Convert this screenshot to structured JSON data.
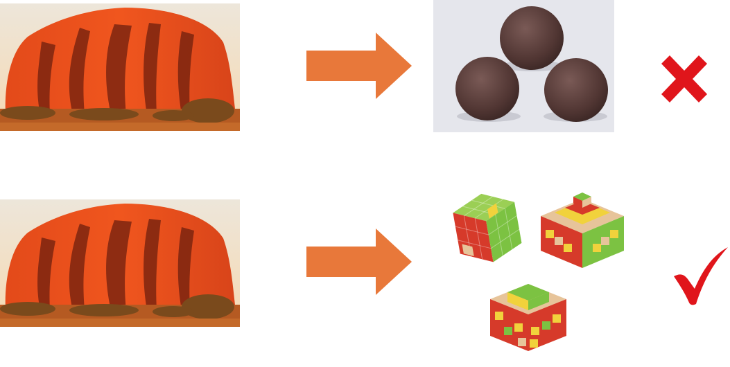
{
  "rows": [
    {
      "source": {
        "icon": "rock-icon"
      },
      "connector": {
        "icon": "arrow-right-icon"
      },
      "result": {
        "icon": "spheres-icon"
      },
      "verdict": {
        "icon": "cross-icon",
        "value": "incorrect"
      }
    },
    {
      "source": {
        "icon": "rock-icon"
      },
      "connector": {
        "icon": "arrow-right-icon"
      },
      "result": {
        "icon": "cubes-icon"
      },
      "verdict": {
        "icon": "check-icon",
        "value": "correct"
      }
    }
  ],
  "colors": {
    "arrow": "#E8783A",
    "cross": "#E0151B",
    "check": "#E0151B",
    "rock": "#E8461A",
    "sky": "#F3E7D3",
    "sphere": "#5A3E3B",
    "sphere_bg": "#E5E6EC",
    "cube_green": "#7CC242",
    "cube_red": "#D63A2A",
    "cube_yellow": "#F1D23C",
    "cube_wood": "#E7C49A"
  }
}
